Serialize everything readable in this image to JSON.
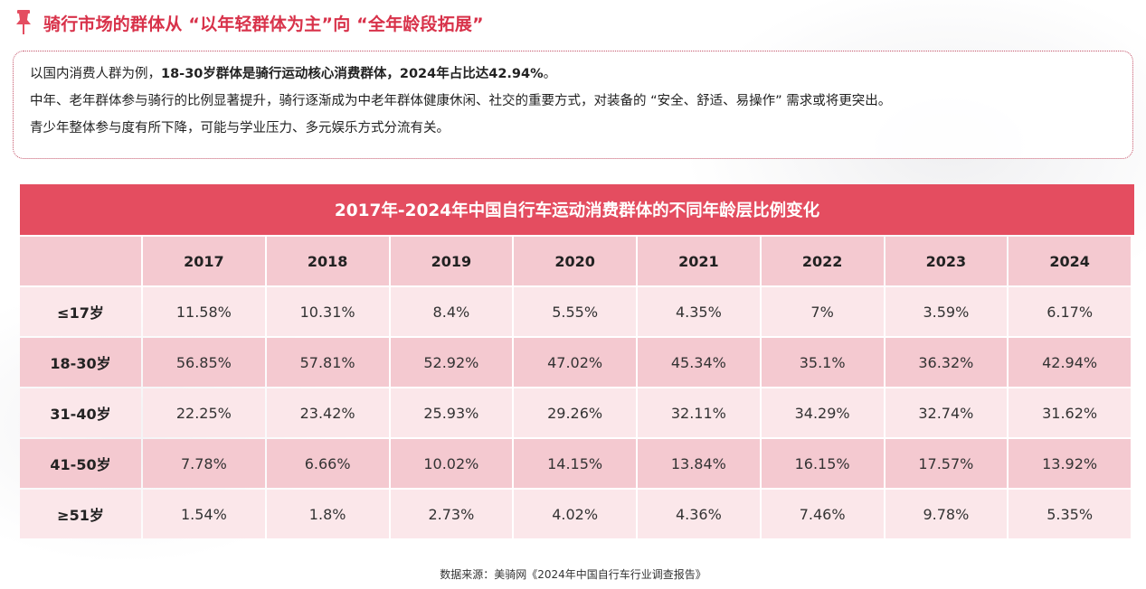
{
  "header": {
    "title": "骑行市场的群体从 “以年轻群体为主”向 “全年龄段拓展”",
    "pin_color": "#e44d60"
  },
  "summary": {
    "line1_prefix": "以国内消费人群为例，",
    "line1_bold": "18-30岁群体是骑行运动核心消费群体，2024年占比达42.94%",
    "line1_suffix": "。",
    "line2": "中年、老年群体参与骑行的比例显著提升，骑行逐渐成为中老年群体健康休闲、社交的重要方式，对装备的 “安全、舒适、易操作” 需求或将更突出。",
    "line3": "青少年整体参与度有所下降，可能与学业压力、多元娱乐方式分流有关。"
  },
  "table": {
    "title": "2017年-2024年中国自行车运动消费群体的不同年龄层比例变化",
    "years": [
      "2017",
      "2018",
      "2019",
      "2020",
      "2021",
      "2022",
      "2023",
      "2024"
    ],
    "rows": [
      {
        "label": "≤17岁",
        "values": [
          "11.58%",
          "10.31%",
          "8.4%",
          "5.55%",
          "4.35%",
          "7%",
          "3.59%",
          "6.17%"
        ]
      },
      {
        "label": "18-30岁",
        "values": [
          "56.85%",
          "57.81%",
          "52.92%",
          "47.02%",
          "45.34%",
          "35.1%",
          "36.32%",
          "42.94%"
        ]
      },
      {
        "label": "31-40岁",
        "values": [
          "22.25%",
          "23.42%",
          "25.93%",
          "29.26%",
          "32.11%",
          "34.29%",
          "32.74%",
          "31.62%"
        ]
      },
      {
        "label": "41-50岁",
        "values": [
          "7.78%",
          "6.66%",
          "10.02%",
          "14.15%",
          "13.84%",
          "16.15%",
          "17.57%",
          "13.92%"
        ]
      },
      {
        "label": "≥51岁",
        "values": [
          "1.54%",
          "1.8%",
          "2.73%",
          "4.02%",
          "4.36%",
          "7.46%",
          "9.78%",
          "5.35%"
        ]
      }
    ]
  },
  "footer": {
    "source": "数据来源：美骑网《2024年中国自行车行业调查报告》"
  }
}
